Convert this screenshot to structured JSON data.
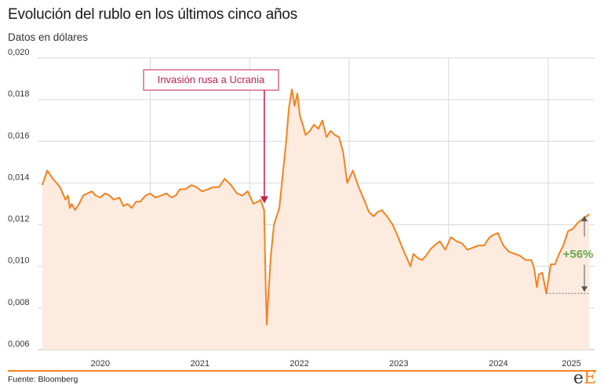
{
  "title": "Evolución del rublo en los últimos cinco años",
  "subtitle": "Datos en dólares",
  "source": "Fuente: Bloomberg",
  "logo": {
    "small": "e",
    "big": "E"
  },
  "colors": {
    "line": "#f58220",
    "area": "#fdebdf",
    "grid": "#d9d9d9",
    "annotation": "#c41e4a",
    "change": "#6aa84f"
  },
  "annotation": {
    "label": "Invasión rusa a Ucrania",
    "date": "2022-02-24",
    "y": 0.0128
  },
  "change_label": "+56%",
  "chart_data": {
    "type": "area",
    "title": "Evolución del rublo en los últimos cinco años",
    "subtitle": "Datos en dólares",
    "ylim": [
      0.006,
      0.02
    ],
    "xlim": [
      "2019-11-15",
      "2025-06-20"
    ],
    "y_ticks": [
      "0,020",
      "0,018",
      "0,016",
      "0,014",
      "0,012",
      "0,010",
      "0,008",
      "0,006"
    ],
    "y_tick_values": [
      0.02,
      0.018,
      0.016,
      0.014,
      0.012,
      0.01,
      0.008,
      0.006
    ],
    "x_ticks": [
      "2020",
      "2021",
      "2022",
      "2023",
      "2024",
      "2025"
    ],
    "grid": true,
    "x": [
      "2019-12-02",
      "2019-12-20",
      "2020-01-10",
      "2020-02-05",
      "2020-02-25",
      "2020-03-05",
      "2020-03-12",
      "2020-03-19",
      "2020-03-31",
      "2020-04-15",
      "2020-04-30",
      "2020-05-15",
      "2020-06-01",
      "2020-06-15",
      "2020-07-01",
      "2020-07-20",
      "2020-08-05",
      "2020-08-20",
      "2020-09-10",
      "2020-09-25",
      "2020-10-10",
      "2020-10-25",
      "2020-11-10",
      "2020-11-25",
      "2020-12-15",
      "2021-01-01",
      "2021-01-20",
      "2021-02-10",
      "2021-03-01",
      "2021-03-20",
      "2021-04-05",
      "2021-04-20",
      "2021-05-10",
      "2021-06-01",
      "2021-06-20",
      "2021-07-10",
      "2021-08-01",
      "2021-08-20",
      "2021-09-10",
      "2021-10-01",
      "2021-10-25",
      "2021-11-15",
      "2021-12-05",
      "2021-12-25",
      "2022-01-15",
      "2022-01-31",
      "2022-02-10",
      "2022-02-23",
      "2022-03-01",
      "2022-03-05",
      "2022-03-10",
      "2022-03-20",
      "2022-03-31",
      "2022-04-10",
      "2022-04-20",
      "2022-05-01",
      "2022-05-15",
      "2022-05-25",
      "2022-06-05",
      "2022-06-15",
      "2022-06-25",
      "2022-07-05",
      "2022-07-15",
      "2022-07-25",
      "2022-08-10",
      "2022-08-25",
      "2022-09-10",
      "2022-09-25",
      "2022-10-10",
      "2022-10-25",
      "2022-11-10",
      "2022-11-25",
      "2022-12-10",
      "2022-12-25",
      "2023-01-15",
      "2023-02-05",
      "2023-02-25",
      "2023-03-15",
      "2023-04-01",
      "2023-04-15",
      "2023-05-01",
      "2023-05-20",
      "2023-06-10",
      "2023-06-30",
      "2023-07-15",
      "2023-08-01",
      "2023-08-14",
      "2023-08-25",
      "2023-09-10",
      "2023-09-25",
      "2023-10-10",
      "2023-10-25",
      "2023-11-10",
      "2023-11-30",
      "2023-12-20",
      "2024-01-10",
      "2024-01-31",
      "2024-02-20",
      "2024-03-10",
      "2024-03-31",
      "2024-04-20",
      "2024-05-10",
      "2024-05-31",
      "2024-06-12",
      "2024-06-30",
      "2024-07-20",
      "2024-08-10",
      "2024-08-31",
      "2024-09-20",
      "2024-10-10",
      "2024-10-31",
      "2024-11-10",
      "2024-11-20",
      "2024-11-27",
      "2024-12-10",
      "2024-12-25",
      "2025-01-10",
      "2025-01-25",
      "2025-02-10",
      "2025-02-25",
      "2025-03-15",
      "2025-04-01",
      "2025-04-20",
      "2025-05-10",
      "2025-05-31"
    ],
    "series": [
      {
        "values": [
          0.0139,
          0.0146,
          0.0142,
          0.0138,
          0.0132,
          0.0134,
          0.0128,
          0.013,
          0.0127,
          0.013,
          0.0134,
          0.0135,
          0.0136,
          0.0134,
          0.0133,
          0.0135,
          0.0134,
          0.0132,
          0.0133,
          0.0129,
          0.013,
          0.0128,
          0.0131,
          0.0131,
          0.0134,
          0.0135,
          0.0133,
          0.0134,
          0.0135,
          0.0133,
          0.0134,
          0.0137,
          0.0137,
          0.0139,
          0.0138,
          0.0136,
          0.0137,
          0.0138,
          0.0138,
          0.0142,
          0.0139,
          0.0135,
          0.0134,
          0.0136,
          0.013,
          0.0131,
          0.0132,
          0.0127,
          0.009,
          0.0072,
          0.0085,
          0.0105,
          0.012,
          0.0124,
          0.0128,
          0.0142,
          0.016,
          0.0176,
          0.0185,
          0.0177,
          0.0183,
          0.0172,
          0.0168,
          0.0163,
          0.0165,
          0.0168,
          0.0166,
          0.017,
          0.0162,
          0.0165,
          0.0163,
          0.0162,
          0.0155,
          0.014,
          0.0146,
          0.0138,
          0.0132,
          0.0126,
          0.0124,
          0.0126,
          0.0127,
          0.0124,
          0.012,
          0.0114,
          0.0109,
          0.0104,
          0.01,
          0.0106,
          0.0104,
          0.0103,
          0.0105,
          0.0108,
          0.011,
          0.0112,
          0.0108,
          0.0114,
          0.0112,
          0.0111,
          0.0108,
          0.0109,
          0.011,
          0.011,
          0.0114,
          0.0115,
          0.0116,
          0.011,
          0.0107,
          0.0106,
          0.0105,
          0.0103,
          0.0103,
          0.0099,
          0.009,
          0.0096,
          0.0097,
          0.0087,
          0.0101,
          0.0101,
          0.0106,
          0.011,
          0.0117,
          0.0118,
          0.0121,
          0.0123,
          0.0125
        ]
      }
    ]
  }
}
